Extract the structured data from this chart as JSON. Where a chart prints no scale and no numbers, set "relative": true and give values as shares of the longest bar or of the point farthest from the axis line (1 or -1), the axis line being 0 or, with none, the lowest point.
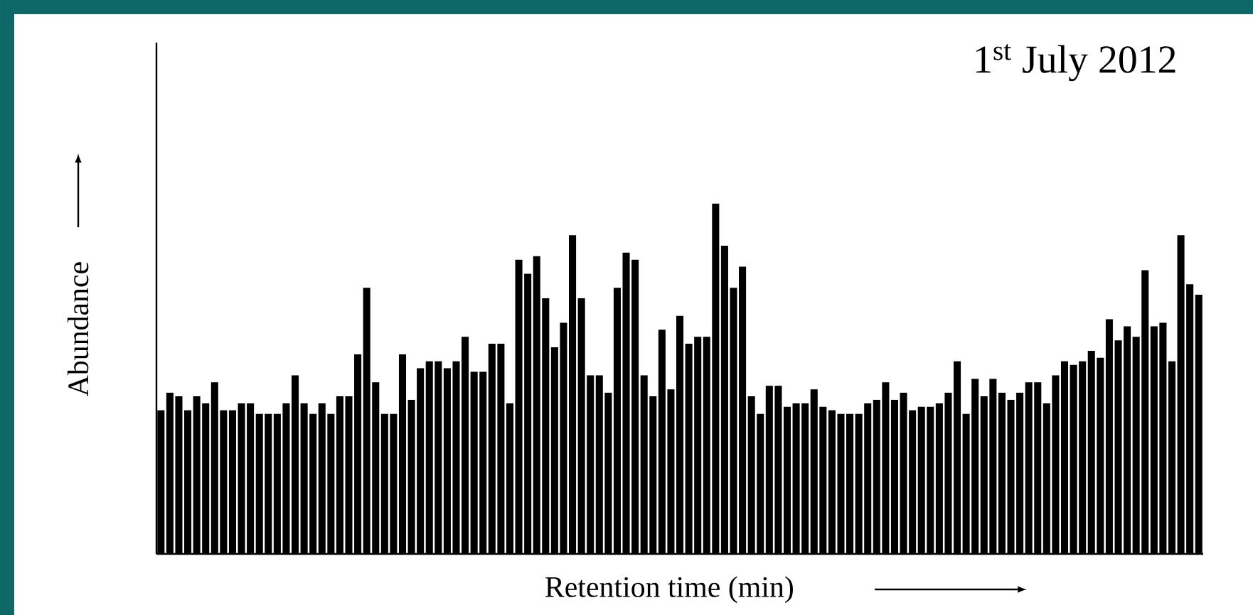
{
  "chart_data": {
    "type": "bar",
    "title": "1$^{st}$ July 2012",
    "xlabel": "Retention time (min)",
    "ylabel": "Abundance",
    "relative": true,
    "color": "#000000",
    "categories": [
      null,
      null,
      null,
      null,
      null,
      null,
      null,
      null,
      null,
      null,
      null,
      null,
      null,
      null,
      null,
      null,
      null,
      null,
      null,
      null,
      null,
      null,
      null,
      null,
      null,
      null,
      null,
      null,
      null,
      null,
      null,
      null,
      null,
      null,
      null,
      null,
      null,
      null,
      null,
      null,
      null,
      null,
      null,
      null,
      null,
      null,
      null,
      null,
      null,
      null,
      null,
      null,
      null,
      null,
      null,
      null,
      null,
      null,
      null,
      null,
      null,
      null,
      null,
      null,
      null,
      null,
      null,
      null,
      null,
      null,
      null,
      null,
      null,
      null,
      null,
      null,
      null,
      null,
      null,
      null,
      null,
      null,
      null,
      null,
      null,
      null,
      null,
      null,
      null,
      null,
      null,
      null,
      null,
      null,
      null,
      null,
      null,
      null,
      null,
      null,
      null,
      null,
      null,
      null,
      null,
      null,
      null,
      null,
      null,
      null,
      null,
      null,
      null,
      null,
      null,
      null,
      null
    ],
    "values": [
      0.41,
      0.46,
      0.45,
      0.41,
      0.45,
      0.43,
      0.49,
      0.41,
      0.41,
      0.43,
      0.43,
      0.4,
      0.4,
      0.4,
      0.43,
      0.51,
      0.43,
      0.4,
      0.43,
      0.4,
      0.45,
      0.45,
      0.57,
      0.76,
      0.49,
      0.4,
      0.4,
      0.57,
      0.44,
      0.53,
      0.55,
      0.55,
      0.53,
      0.55,
      0.62,
      0.52,
      0.52,
      0.6,
      0.6,
      0.43,
      0.84,
      0.8,
      0.85,
      0.73,
      0.59,
      0.66,
      0.91,
      0.73,
      0.51,
      0.51,
      0.46,
      0.76,
      0.86,
      0.84,
      0.51,
      0.45,
      0.64,
      0.47,
      0.68,
      0.6,
      0.62,
      0.62,
      1,
      0.88,
      0.76,
      0.82,
      0.45,
      0.4,
      0.48,
      0.48,
      0.42,
      0.43,
      0.43,
      0.47,
      0.42,
      0.41,
      0.4,
      0.4,
      0.4,
      0.43,
      0.44,
      0.49,
      0.44,
      0.46,
      0.41,
      0.42,
      0.42,
      0.43,
      0.46,
      0.55,
      0.4,
      0.5,
      0.45,
      0.5,
      0.46,
      0.44,
      0.46,
      0.49,
      0.49,
      0.43,
      0.51,
      0.55,
      0.54,
      0.55,
      0.58,
      0.56,
      0.67,
      0.61,
      0.65,
      0.62,
      0.81,
      0.65,
      0.66,
      0.55,
      0.91,
      0.77,
      0.74
    ]
  }
}
